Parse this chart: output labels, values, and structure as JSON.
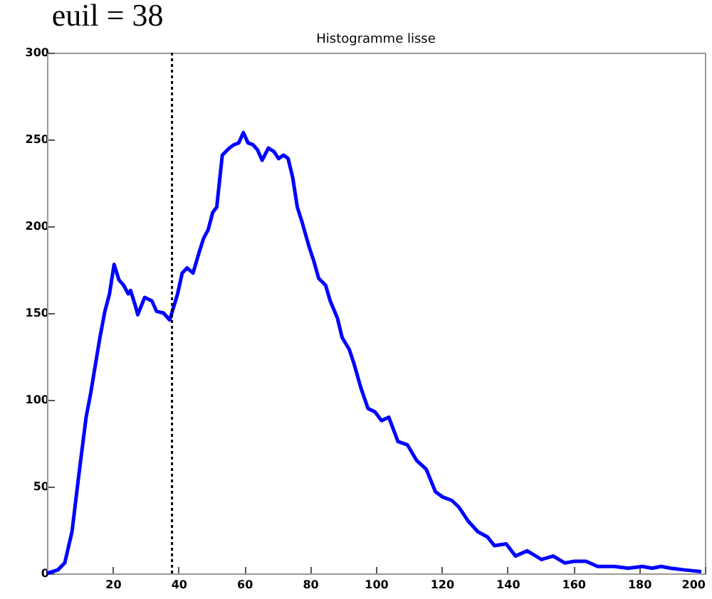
{
  "chart_data": {
    "type": "line",
    "title": "Histogramme lisse",
    "x": [
      0,
      3.3,
      5.4,
      7.6,
      9.7,
      11.9,
      13.3,
      14.7,
      16.1,
      17.6,
      19,
      20.4,
      21.9,
      23.3,
      24.7,
      25.4,
      26.9,
      27.6,
      29.7,
      31.9,
      33.3,
      35.4,
      37.3,
      39.7,
      41.1,
      42.6,
      44.4,
      46.1,
      47.6,
      49,
      50.4,
      51.6,
      53.3,
      55.4,
      56.9,
      58.3,
      59.7,
      61.1,
      62.6,
      64,
      65.4,
      67.3,
      69,
      70.4,
      71.9,
      73.3,
      74.7,
      76.1,
      77.6,
      79.7,
      81.1,
      82.6,
      84.7,
      86.1,
      88.3,
      89.7,
      91.9,
      93.3,
      95.4,
      97.6,
      99.7,
      101.7,
      103.9,
      106.7,
      109.6,
      112.4,
      115.3,
      118.1,
      120.3,
      123.1,
      125.3,
      128.1,
      131,
      133.9,
      136,
      139.6,
      142.4,
      146,
      150.3,
      153.9,
      157.4,
      160.3,
      163.9,
      167.4,
      172.4,
      176.7,
      181,
      183.9,
      186.7,
      189.6,
      193.9,
      198.9
    ],
    "series": [
      {
        "color": "#0000ff",
        "values": [
          0,
          2,
          6,
          24,
          57,
          90,
          104,
          120,
          136,
          151,
          161,
          178,
          169,
          166,
          161,
          163,
          154,
          149,
          159,
          157,
          151,
          150,
          146,
          161,
          173,
          176,
          173,
          184,
          193,
          198,
          208,
          211,
          241,
          245,
          247,
          248,
          254,
          248,
          247,
          244,
          238,
          245,
          243,
          239,
          241,
          239,
          228,
          211,
          202,
          188,
          180,
          170,
          166,
          157,
          147,
          136,
          129,
          121,
          107,
          95,
          93,
          88,
          90,
          76,
          74,
          65,
          60,
          47,
          44,
          42,
          38,
          30,
          24,
          21,
          16,
          17,
          10,
          13,
          8,
          10,
          6,
          7,
          7,
          4,
          4,
          3,
          4,
          3,
          4,
          3,
          2,
          1
        ]
      }
    ],
    "xlim": [
      0,
      200
    ],
    "xticks": [
      20,
      40,
      60,
      80,
      100,
      120,
      140,
      160,
      180,
      200
    ],
    "ylim": [
      0,
      300
    ],
    "yticks": [
      0,
      50,
      100,
      150,
      200,
      250,
      300
    ],
    "ref_lines": [
      {
        "axis": "x",
        "value": 38,
        "label": "euil = 38",
        "color": "#000000",
        "line_style": "dotted"
      }
    ]
  }
}
